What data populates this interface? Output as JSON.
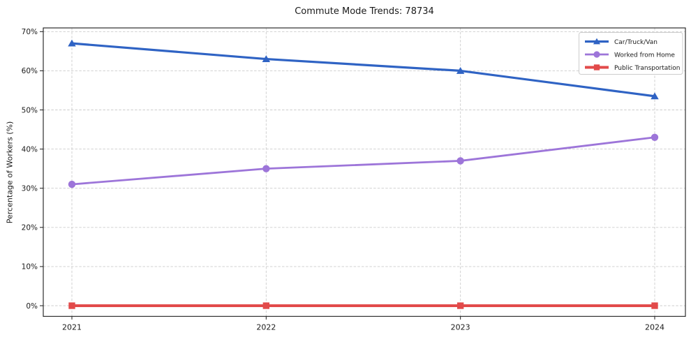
{
  "chart_data": {
    "type": "line",
    "title": "Commute Mode Trends: 78734",
    "xlabel": "",
    "ylabel": "Percentage of Workers (%)",
    "categories": [
      "2021",
      "2022",
      "2023",
      "2024"
    ],
    "series": [
      {
        "name": "Car/Truck/Van",
        "values": [
          67,
          63,
          60,
          53.5
        ],
        "color": "#2f63c4",
        "marker": "triangle-up",
        "line_width": 3.2
      },
      {
        "name": "Worked from Home",
        "values": [
          31,
          35,
          37,
          43
        ],
        "color": "#9d75d9",
        "marker": "circle",
        "line_width": 2.8
      },
      {
        "name": "Public Transportation",
        "values": [
          0,
          0,
          0,
          0
        ],
        "color": "#e24a4a",
        "marker": "square",
        "line_width": 4
      }
    ],
    "ylim": [
      0,
      70
    ],
    "ytick_step": 10,
    "ytick_suffix": "%",
    "grid": "both, dashed",
    "grid_color": "#cccccc",
    "axis_color": "#1a1a1a",
    "legend_position": "upper-right",
    "background_color": "#ffffff"
  }
}
